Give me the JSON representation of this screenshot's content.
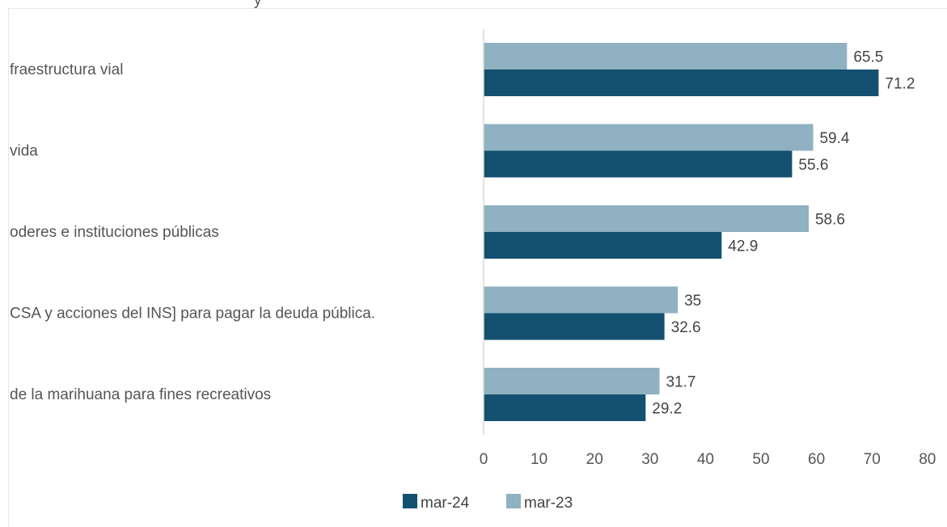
{
  "chart_data": {
    "type": "bar",
    "orientation": "horizontal",
    "categories": [
      "fraestructura vial",
      "vida",
      "oderes e instituciones públicas",
      "CSA y acciones del INS] para pagar la deuda pública.",
      "de la marihuana para fines recreativos"
    ],
    "series": [
      {
        "name": "mar-23",
        "color": "#8fb1c1",
        "values": [
          65.5,
          59.4,
          58.6,
          35,
          31.7
        ]
      },
      {
        "name": "mar-24",
        "color": "#14506f",
        "values": [
          71.2,
          55.6,
          42.9,
          32.6,
          29.2
        ]
      }
    ],
    "data_labels": [
      [
        "65.5",
        "59.4",
        "58.6",
        "35",
        "31.7"
      ],
      [
        "71.2",
        "55.6",
        "42.9",
        "32.6",
        "29.2"
      ]
    ],
    "xticks": [
      "0",
      "10",
      "20",
      "30",
      "40",
      "50",
      "60",
      "70",
      "80"
    ],
    "xlim": [
      0,
      80
    ],
    "grid": false,
    "legend": {
      "placement": "bottom-center",
      "order": [
        "mar-24",
        "mar-23"
      ]
    }
  },
  "top_fragment": "y"
}
